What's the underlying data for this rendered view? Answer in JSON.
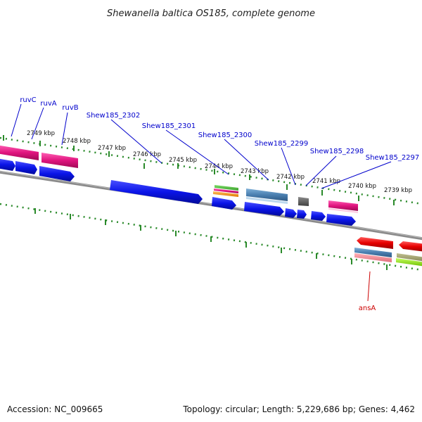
{
  "title": "Shewanella baltica OS185, complete genome",
  "footer": {
    "accession": "Accession: NC_009665",
    "summary": "Topology: circular; Length: 5,229,686 bp; Genes: 4,462"
  },
  "colors": {
    "gene_label": "#0000cc",
    "highlight_label": "#cc0000",
    "tick": "#2a8a2a",
    "backbone": "#7a7a7a",
    "forward_cds": "#0a14e8",
    "reverse_cds": "#e60000"
  },
  "kbp_labels": [
    "2749 kbp",
    "2748 kbp",
    "2747 kbp",
    "2746 kbp",
    "2745 kbp",
    "2744 kbp",
    "2743 kbp",
    "2742 kbp",
    "2741 kbp",
    "2740 kbp",
    "2739 kbp"
  ],
  "gene_labels": [
    "ruvC",
    "ruvA",
    "ruvB",
    "Shew185_2302",
    "Shew185_2301",
    "Shew185_2300",
    "Shew185_2299",
    "Shew185_2298",
    "Shew185_2297"
  ],
  "highlight_label": "ansA"
}
